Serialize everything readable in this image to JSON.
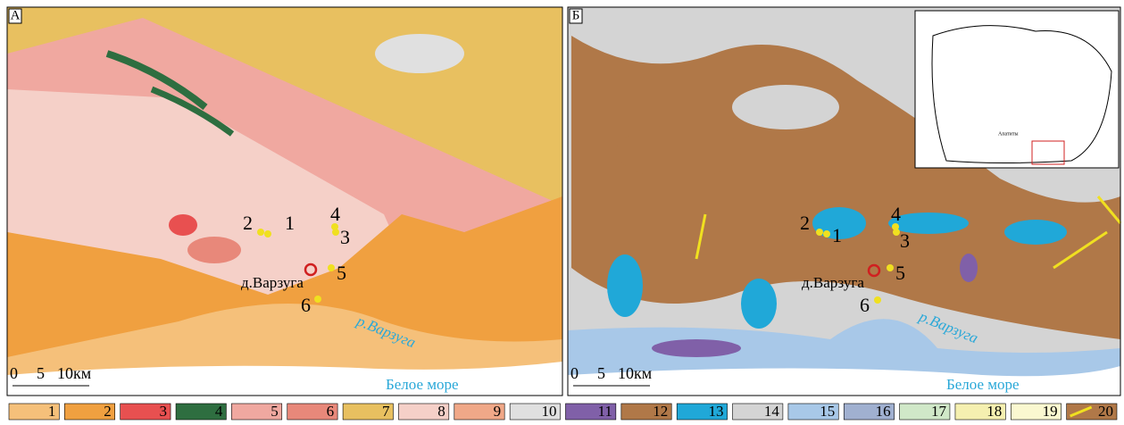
{
  "panels": [
    {
      "label": "А",
      "points": [
        "1",
        "2",
        "3",
        "4",
        "5",
        "6"
      ],
      "village": "д.Варзуга",
      "river": "р.Варзуга",
      "sea": "Белое море",
      "scale": [
        "0",
        "5",
        "10км"
      ]
    },
    {
      "label": "Б",
      "points": [
        "1",
        "2",
        "3",
        "4",
        "5",
        "6"
      ],
      "village": "д.Варзуга",
      "river": "р.Варзуга",
      "sea": "Белое море",
      "scale": [
        "0",
        "5",
        "10км"
      ],
      "inset": "Апатиты"
    }
  ],
  "legend": [
    {
      "label": "1",
      "color": "#f5c07a"
    },
    {
      "label": "2",
      "color": "#f0a040"
    },
    {
      "label": "3",
      "color": "#e85050"
    },
    {
      "label": "4",
      "color": "#2e6e40"
    },
    {
      "label": "5",
      "color": "#f0a8a0"
    },
    {
      "label": "6",
      "color": "#e8887a"
    },
    {
      "label": "7",
      "color": "#e8c060"
    },
    {
      "label": "8",
      "color": "#f5d0c8"
    },
    {
      "label": "9",
      "color": "#f0a888"
    },
    {
      "label": "10",
      "color": "#e0e0e0"
    },
    {
      "label": "11",
      "color": "#8060a8"
    },
    {
      "label": "12",
      "color": "#b07848"
    },
    {
      "label": "13",
      "color": "#20a8d8"
    },
    {
      "label": "14",
      "color": "#d4d4d4"
    },
    {
      "label": "15",
      "color": "#a8c8e8"
    },
    {
      "label": "16",
      "color": "#a0b0d0"
    },
    {
      "label": "17",
      "color": "#d0e8c8"
    },
    {
      "label": "18",
      "color": "#f5f0b0"
    },
    {
      "label": "19",
      "color": "#faf8d0"
    },
    {
      "label": "20",
      "color": "#b07848"
    }
  ]
}
